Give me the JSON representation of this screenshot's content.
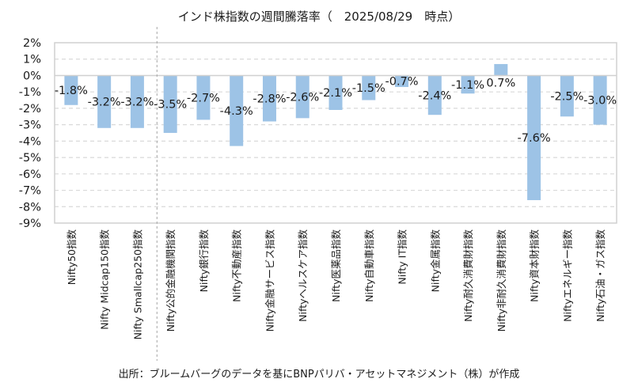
{
  "chart_data": {
    "type": "bar",
    "title": "インド株指数の週間騰落率（　2025/08/29　時点）",
    "xlabel": "",
    "ylabel": "",
    "ylim": [
      -9,
      2
    ],
    "ytick_step": 1,
    "yticks": [
      "2%",
      "1%",
      "0%",
      "-1%",
      "-2%",
      "-3%",
      "-4%",
      "-5%",
      "-6%",
      "-7%",
      "-8%",
      "-9%"
    ],
    "grid": true,
    "legend": "none",
    "bar_color": "#9dc3e6",
    "separator_after_category_index": 2,
    "categories": [
      "Nifty50指数",
      "Nifty Midcap150指数",
      "Nifty Smallcap250指数",
      "Nifty公的金融機関指数",
      "Nifty銀行指数",
      "Nifty不動産指数",
      "Nifty金融サービス指数",
      "Niftyヘルスケア指数",
      "Nifty医薬品指数",
      "Nifty自動車指数",
      "Nifty IT指数",
      "Nifty金属指数",
      "Nifty耐久消費財指数",
      "Nifty非耐久消費財指数",
      "Nifty資本財指数",
      "Niftyエネルギー指数",
      "Nifty石油・ガス指数"
    ],
    "values": [
      -1.8,
      -3.2,
      -3.2,
      -3.5,
      -2.7,
      -4.3,
      -2.8,
      -2.6,
      -2.1,
      -1.5,
      -0.7,
      -2.4,
      -1.1,
      0.7,
      -7.6,
      -2.5,
      -3.0
    ],
    "data_labels": [
      "-1.8%",
      "-3.2%",
      "-3.2%",
      "-3.5%",
      "-2.7%",
      "-4.3%",
      "-2.8%",
      "-2.6%",
      "-2.1%",
      "-1.5%",
      "-0.7%",
      "-2.4%",
      "-1.1%",
      "0.7%",
      "-7.6%",
      "-2.5%",
      "-3.0%"
    ]
  },
  "source_note": "出所：ブルームバーグのデータを基にBNPパリバ・アセットマネジメント（株）が作成"
}
